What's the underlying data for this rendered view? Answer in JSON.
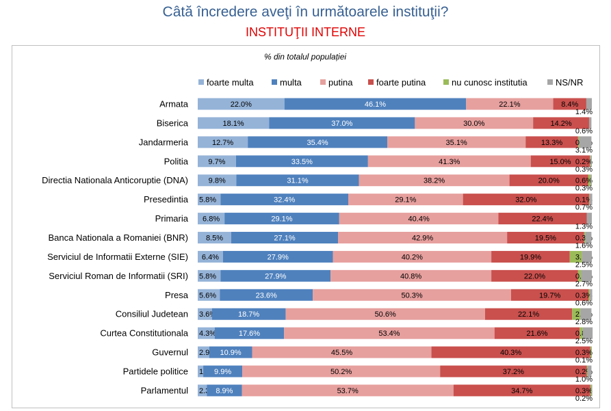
{
  "chart_data": {
    "type": "bar",
    "orientation": "horizontal",
    "stacked": true,
    "title": "Câtă încredere aveţi în următoarele instituţii?",
    "subtitle": "INSTITUŢII INTERNE",
    "note": "% din totalul populației",
    "legend_position": "top",
    "xlim": [
      0,
      100
    ],
    "grid": false,
    "categories": [
      "Armata",
      "Biserica",
      "Jandarmeria",
      "Politia",
      "Directia Nationala Anticoruptie (DNA)",
      "Presedintia",
      "Primaria",
      "Banca Nationala a Romaniei (BNR)",
      "Serviciul de Informatii Externe (SIE)",
      "Serviciul Roman de Informatii (SRI)",
      "Presa",
      "Consiliul Judetean",
      "Curtea Constitutionala",
      "Guvernul",
      "Partidele politice",
      "Parlamentul"
    ],
    "series": [
      {
        "name": "foarte multa",
        "color": "#95b3d7",
        "values": [
          22.0,
          18.1,
          12.7,
          9.7,
          9.8,
          5.8,
          6.8,
          8.5,
          6.4,
          5.8,
          5.6,
          3.6,
          4.3,
          2.9,
          1.4,
          2.3
        ]
      },
      {
        "name": "multa",
        "color": "#4f81bd",
        "values": [
          46.1,
          37.0,
          35.4,
          33.5,
          31.1,
          32.4,
          29.1,
          27.1,
          27.9,
          27.9,
          23.6,
          18.7,
          17.6,
          10.9,
          9.9,
          8.9
        ]
      },
      {
        "name": "putina",
        "color": "#e6a09e",
        "values": [
          22.1,
          30.0,
          35.1,
          41.3,
          38.2,
          29.1,
          40.4,
          42.9,
          40.2,
          40.8,
          50.3,
          50.6,
          53.4,
          45.5,
          50.2,
          53.7
        ]
      },
      {
        "name": "foarte putina",
        "color": "#c9504d",
        "values": [
          8.4,
          14.2,
          13.3,
          15.0,
          20.0,
          32.0,
          22.4,
          19.5,
          19.9,
          22.0,
          19.7,
          22.1,
          21.6,
          40.3,
          37.2,
          34.7
        ]
      },
      {
        "name": "nu cunosc institutia",
        "color": "#9bbb59",
        "values": [
          null,
          null,
          0.3,
          0.2,
          0.6,
          0.1,
          null,
          0.3,
          3.1,
          0.8,
          0.3,
          2.1,
          0.8,
          0.3,
          0.2,
          0.3
        ]
      },
      {
        "name": "NS/NR",
        "color": "#a6a6a6",
        "values": [
          1.4,
          0.6,
          3.1,
          0.3,
          0.3,
          0.7,
          1.3,
          1.6,
          2.5,
          2.7,
          0.6,
          2.8,
          2.5,
          0.1,
          1.0,
          0.2
        ]
      }
    ]
  }
}
